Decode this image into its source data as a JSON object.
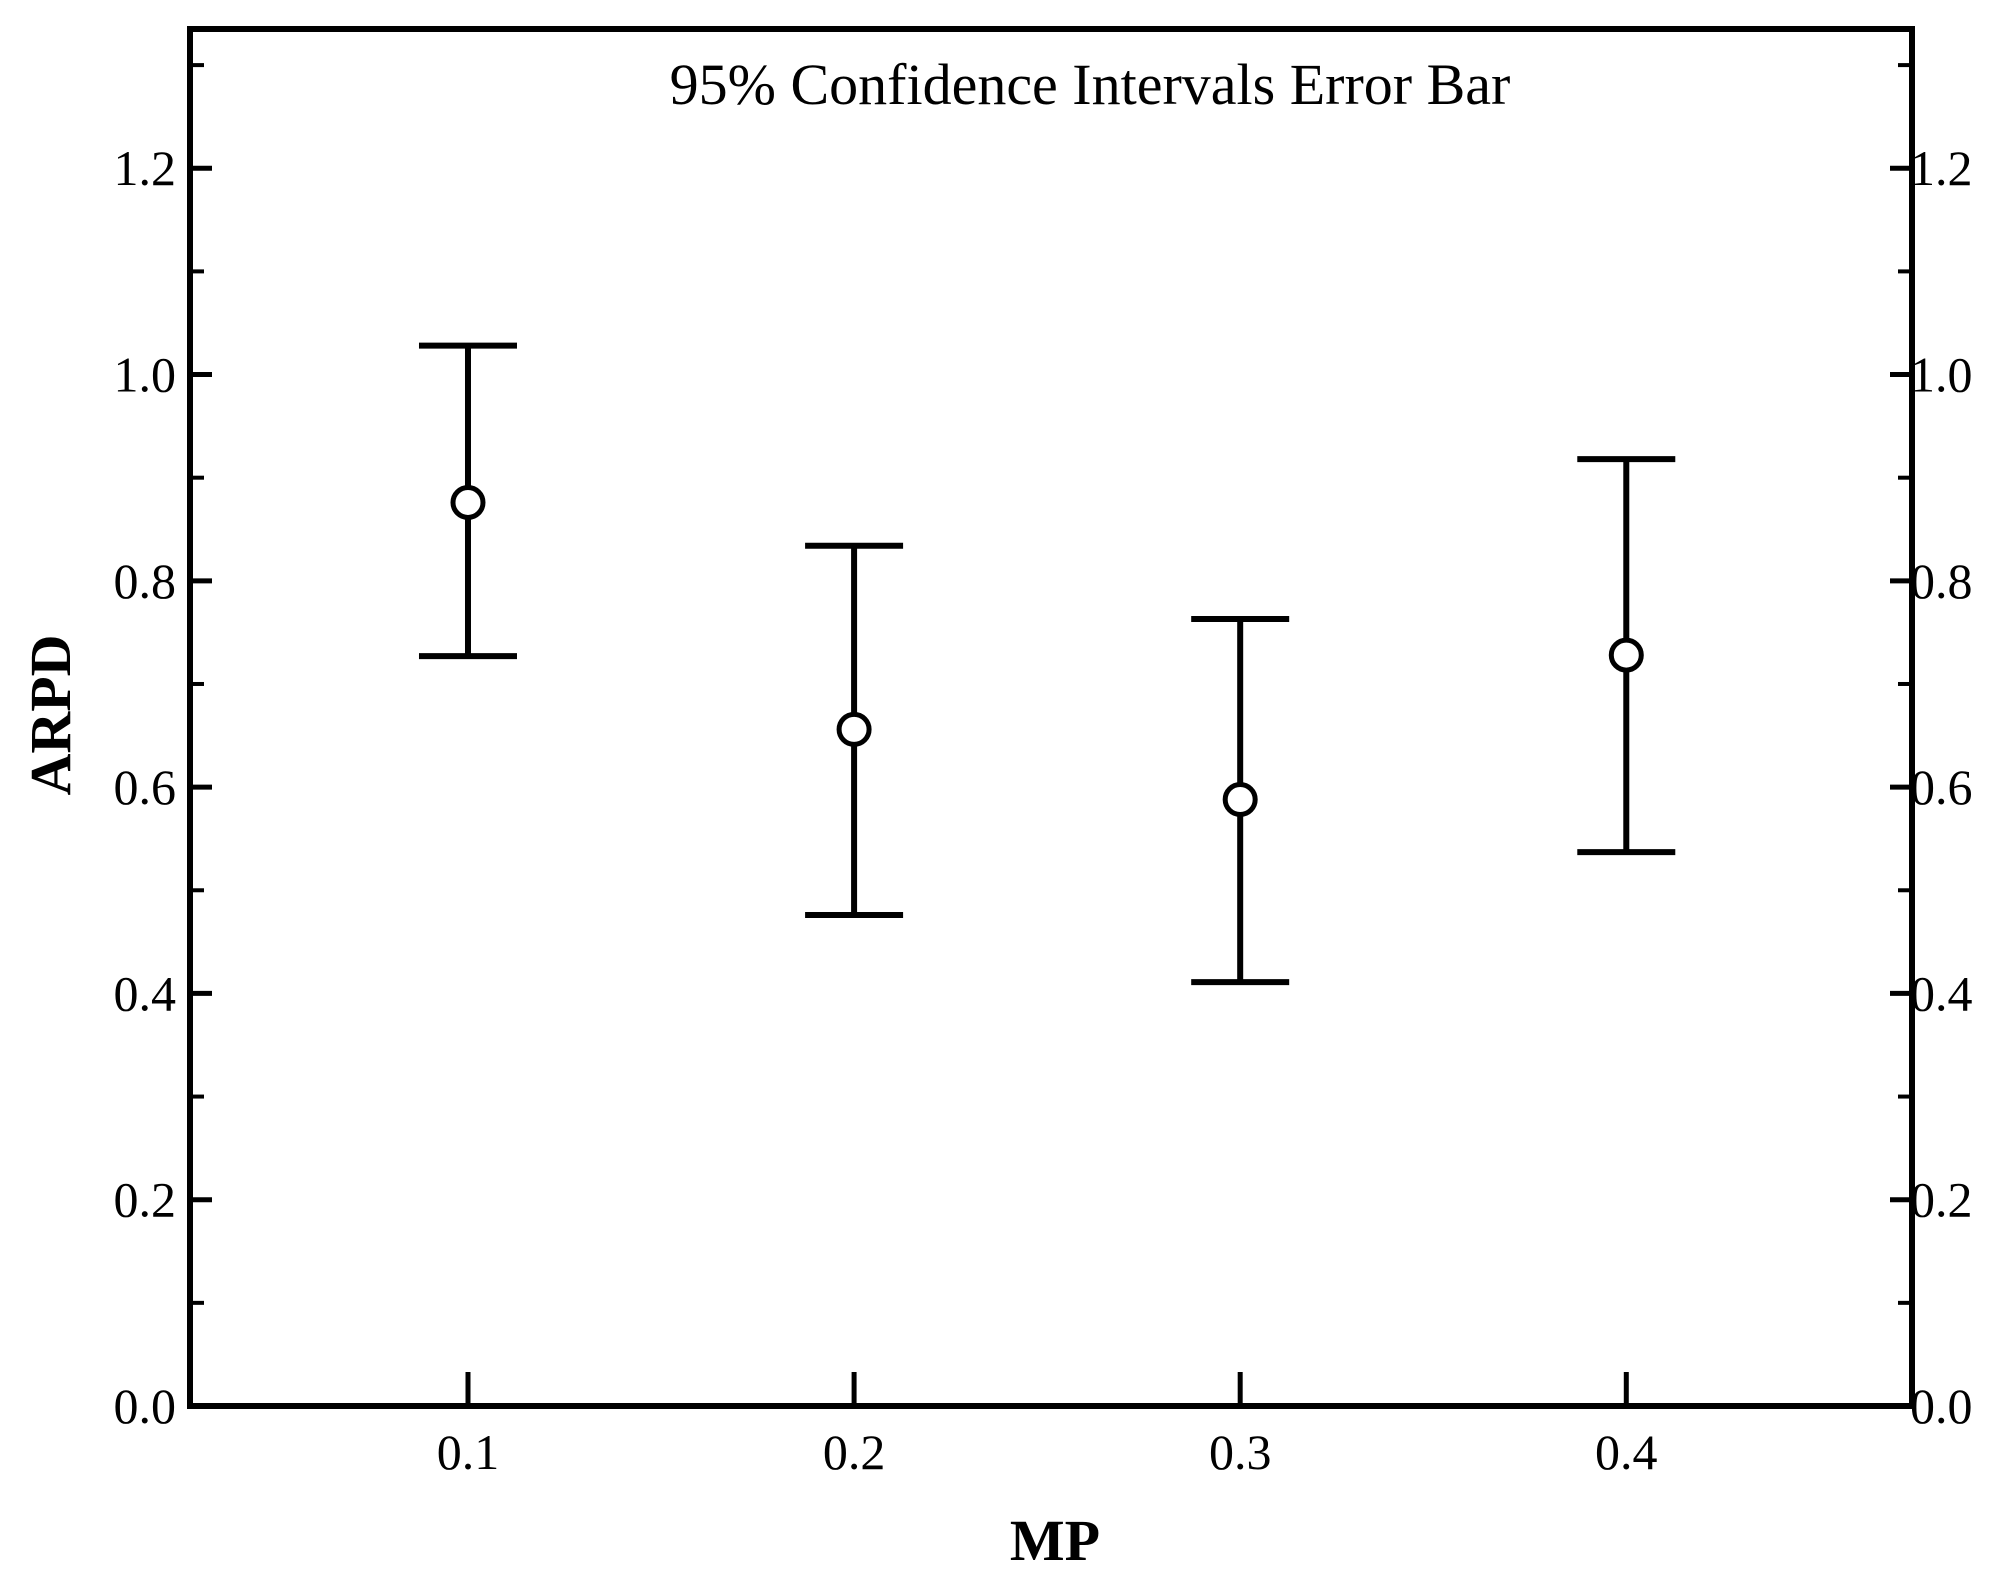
{
  "chart_data": {
    "type": "scatter",
    "title": "95% Confidence Intervals Error Bar",
    "xlabel": "MP",
    "ylabel": "ARPD",
    "x": [
      0.1,
      0.2,
      0.3,
      0.4
    ],
    "x_tick_labels": [
      "0.1",
      "0.2",
      "0.3",
      "0.4"
    ],
    "y_tick_labels": [
      "0.0",
      "0.2",
      "0.4",
      "0.6",
      "0.8",
      "1.0",
      "1.2"
    ],
    "y_right_tick_labels": [
      "0.0",
      "0.2",
      "0.4",
      "0.6",
      "0.8",
      "1.0",
      "1.2"
    ],
    "xlim": [
      0.028,
      0.474
    ],
    "ylim": [
      0.0,
      1.335
    ],
    "grid": false,
    "marker": "open-circle",
    "series": [
      {
        "mean": [
          0.876,
          0.656,
          0.588,
          0.728
        ],
        "lower": [
          0.727,
          0.476,
          0.411,
          0.537
        ],
        "upper": [
          1.028,
          0.834,
          0.763,
          0.918
        ]
      }
    ]
  }
}
